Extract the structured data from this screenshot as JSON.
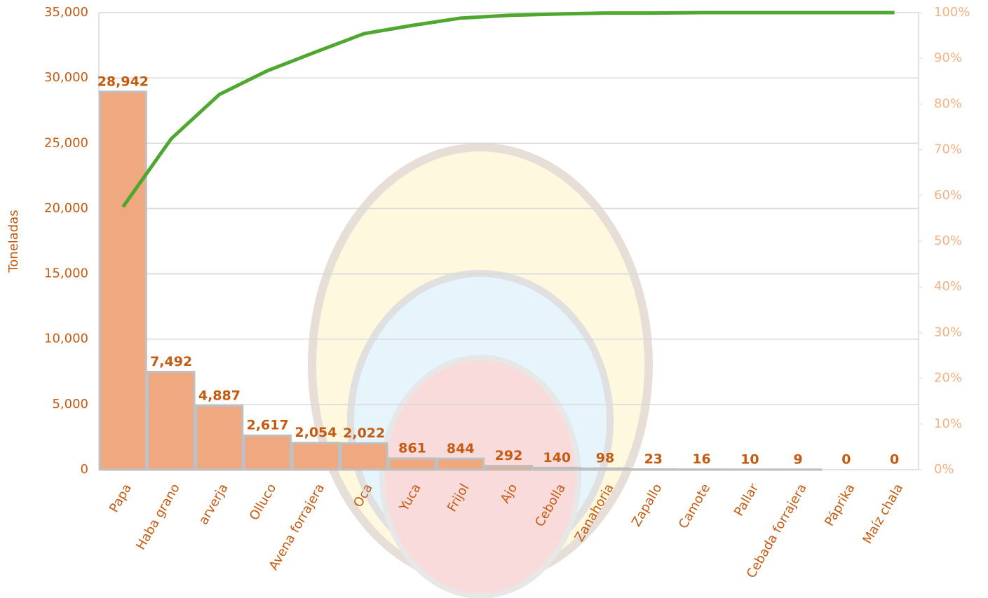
{
  "chart_data": {
    "type": "pareto",
    "y_label": "Toneladas",
    "categories": [
      "Papa",
      "Haba grano",
      "arverja",
      "Olluco",
      "Avena forrajera",
      "Oca",
      "Yuca",
      "Frijol",
      "Ajo",
      "Cebolla",
      "Zanahoria",
      "Zapallo",
      "Camote",
      "Pallar",
      "Cebada forrajera",
      "Páprika",
      "Maíz chala"
    ],
    "values": [
      28942,
      7492,
      4887,
      2617,
      2054,
      2022,
      861,
      844,
      292,
      140,
      98,
      23,
      16,
      10,
      9,
      0,
      0
    ],
    "value_labels": [
      "28,942",
      "7,492",
      "4,887",
      "2,617",
      "2,054",
      "2,022",
      "861",
      "844",
      "292",
      "140",
      "98",
      "23",
      "16",
      "10",
      "9",
      "0",
      "0"
    ],
    "color": "#f0a880",
    "line_values": [
      57.5,
      72.4,
      82.1,
      87.3,
      91.4,
      95.4,
      97.2,
      98.8,
      99.4,
      99.7,
      99.9,
      99.9,
      100,
      100,
      100,
      100,
      100
    ],
    "line_color": "#4ea72e",
    "line_axis": "y2",
    "ylim": [
      0,
      35000
    ],
    "yticks": [
      0,
      {
        "value": 5000,
        "label": "5,000"
      },
      {
        "value": 10000,
        "label": "10,000"
      },
      {
        "value": 15000,
        "label": "15,000"
      },
      {
        "value": 20000,
        "label": "20,000"
      },
      {
        "value": 25000,
        "label": "25,000"
      },
      {
        "value": 30000,
        "label": "30,000"
      },
      {
        "value": 35000,
        "label": "35,000"
      }
    ],
    "y2lim": [
      0,
      100
    ],
    "y2ticks": [
      {
        "value": 0,
        "label": "0%"
      },
      {
        "value": 10,
        "label": "10%"
      },
      {
        "value": 20,
        "label": "20%"
      },
      {
        "value": 30,
        "label": "30%"
      },
      {
        "value": 40,
        "label": "40%"
      },
      {
        "value": 50,
        "label": "50%"
      },
      {
        "value": 60,
        "label": "60%"
      },
      {
        "value": 70,
        "label": "70%"
      },
      {
        "value": 80,
        "label": "80%"
      },
      {
        "value": 90,
        "label": "90%"
      },
      {
        "value": 100,
        "label": "100%"
      }
    ],
    "grid": true
  }
}
